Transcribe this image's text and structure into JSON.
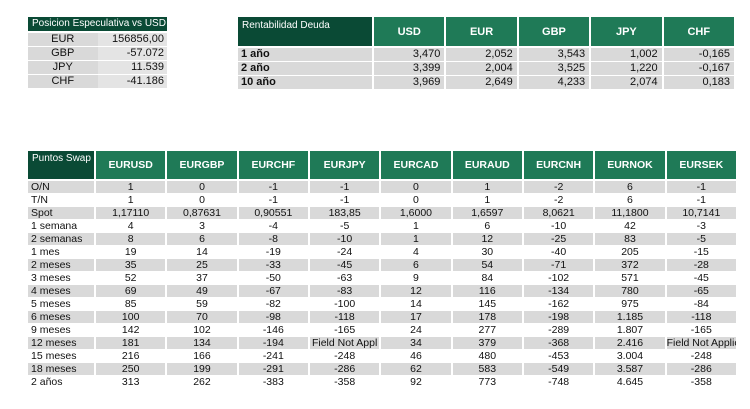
{
  "posicion": {
    "title": "Posicion Especulativa vs USD",
    "rows": [
      {
        "ccy": "EUR",
        "value": "156856,00"
      },
      {
        "ccy": "GBP",
        "value": "-57.072"
      },
      {
        "ccy": "JPY",
        "value": "11.539"
      },
      {
        "ccy": "CHF",
        "value": "-41.186"
      }
    ]
  },
  "rentabilidad": {
    "title": "Rentabilidad Deuda",
    "columns": [
      "USD",
      "EUR",
      "GBP",
      "JPY",
      "CHF"
    ],
    "rows": [
      {
        "label": "1 año",
        "values": [
          "3,470",
          "2,052",
          "3,543",
          "1,002",
          "-0,165"
        ]
      },
      {
        "label": "2 año",
        "values": [
          "3,399",
          "2,004",
          "3,525",
          "1,220",
          "-0,167"
        ]
      },
      {
        "label": "10 año",
        "values": [
          "3,969",
          "2,649",
          "4,233",
          "2,074",
          "0,183"
        ]
      }
    ]
  },
  "swap": {
    "title": "Puntos Swap",
    "columns": [
      "EURUSD",
      "EURGBP",
      "EURCHF",
      "EURJPY",
      "EURCAD",
      "EURAUD",
      "EURCNH",
      "EURNOK",
      "EURSEK"
    ],
    "rows": [
      {
        "label": "O/N",
        "values": [
          "1",
          "0",
          "-1",
          "-1",
          "0",
          "1",
          "-2",
          "6",
          "-1"
        ]
      },
      {
        "label": "T/N",
        "values": [
          "1",
          "0",
          "-1",
          "-1",
          "0",
          "1",
          "-2",
          "6",
          "-1"
        ]
      },
      {
        "label": "Spot",
        "values": [
          "1,17110",
          "0,87631",
          "0,90551",
          "183,85",
          "1,6000",
          "1,6597",
          "8,0621",
          "11,1800",
          "10,7141"
        ]
      },
      {
        "label": "1 semana",
        "values": [
          "4",
          "3",
          "-4",
          "-5",
          "1",
          "6",
          "-10",
          "42",
          "-3"
        ]
      },
      {
        "label": "2 semanas",
        "values": [
          "8",
          "6",
          "-8",
          "-10",
          "1",
          "12",
          "-25",
          "83",
          "-5"
        ]
      },
      {
        "label": "1 mes",
        "values": [
          "19",
          "14",
          "-19",
          "-24",
          "4",
          "30",
          "-40",
          "205",
          "-15"
        ]
      },
      {
        "label": "2 meses",
        "values": [
          "35",
          "25",
          "-33",
          "-45",
          "6",
          "54",
          "-71",
          "372",
          "-28"
        ]
      },
      {
        "label": "3 meses",
        "values": [
          "52",
          "37",
          "-50",
          "-63",
          "9",
          "84",
          "-102",
          "571",
          "-45"
        ]
      },
      {
        "label": "4 meses",
        "values": [
          "69",
          "49",
          "-67",
          "-83",
          "12",
          "116",
          "-134",
          "780",
          "-65"
        ]
      },
      {
        "label": "5 meses",
        "values": [
          "85",
          "59",
          "-82",
          "-100",
          "14",
          "145",
          "-162",
          "975",
          "-84"
        ]
      },
      {
        "label": "6 meses",
        "values": [
          "100",
          "70",
          "-98",
          "-118",
          "17",
          "178",
          "-198",
          "1.185",
          "-118"
        ]
      },
      {
        "label": "9 meses",
        "values": [
          "142",
          "102",
          "-146",
          "-165",
          "24",
          "277",
          "-289",
          "1.807",
          "-165"
        ]
      },
      {
        "label": "12 meses",
        "values": [
          "181",
          "134",
          "-194",
          "Field Not Appl",
          "34",
          "379",
          "-368",
          "2.416",
          "Field Not Applicable"
        ]
      },
      {
        "label": "15 meses",
        "values": [
          "216",
          "166",
          "-241",
          "-248",
          "46",
          "480",
          "-453",
          "3.004",
          "-248"
        ]
      },
      {
        "label": "18 meses",
        "values": [
          "250",
          "199",
          "-291",
          "-286",
          "62",
          "583",
          "-549",
          "3.587",
          "-286"
        ]
      },
      {
        "label": "2 años",
        "values": [
          "313",
          "262",
          "-383",
          "-358",
          "92",
          "773",
          "-748",
          "4.645",
          "-358"
        ]
      }
    ]
  }
}
